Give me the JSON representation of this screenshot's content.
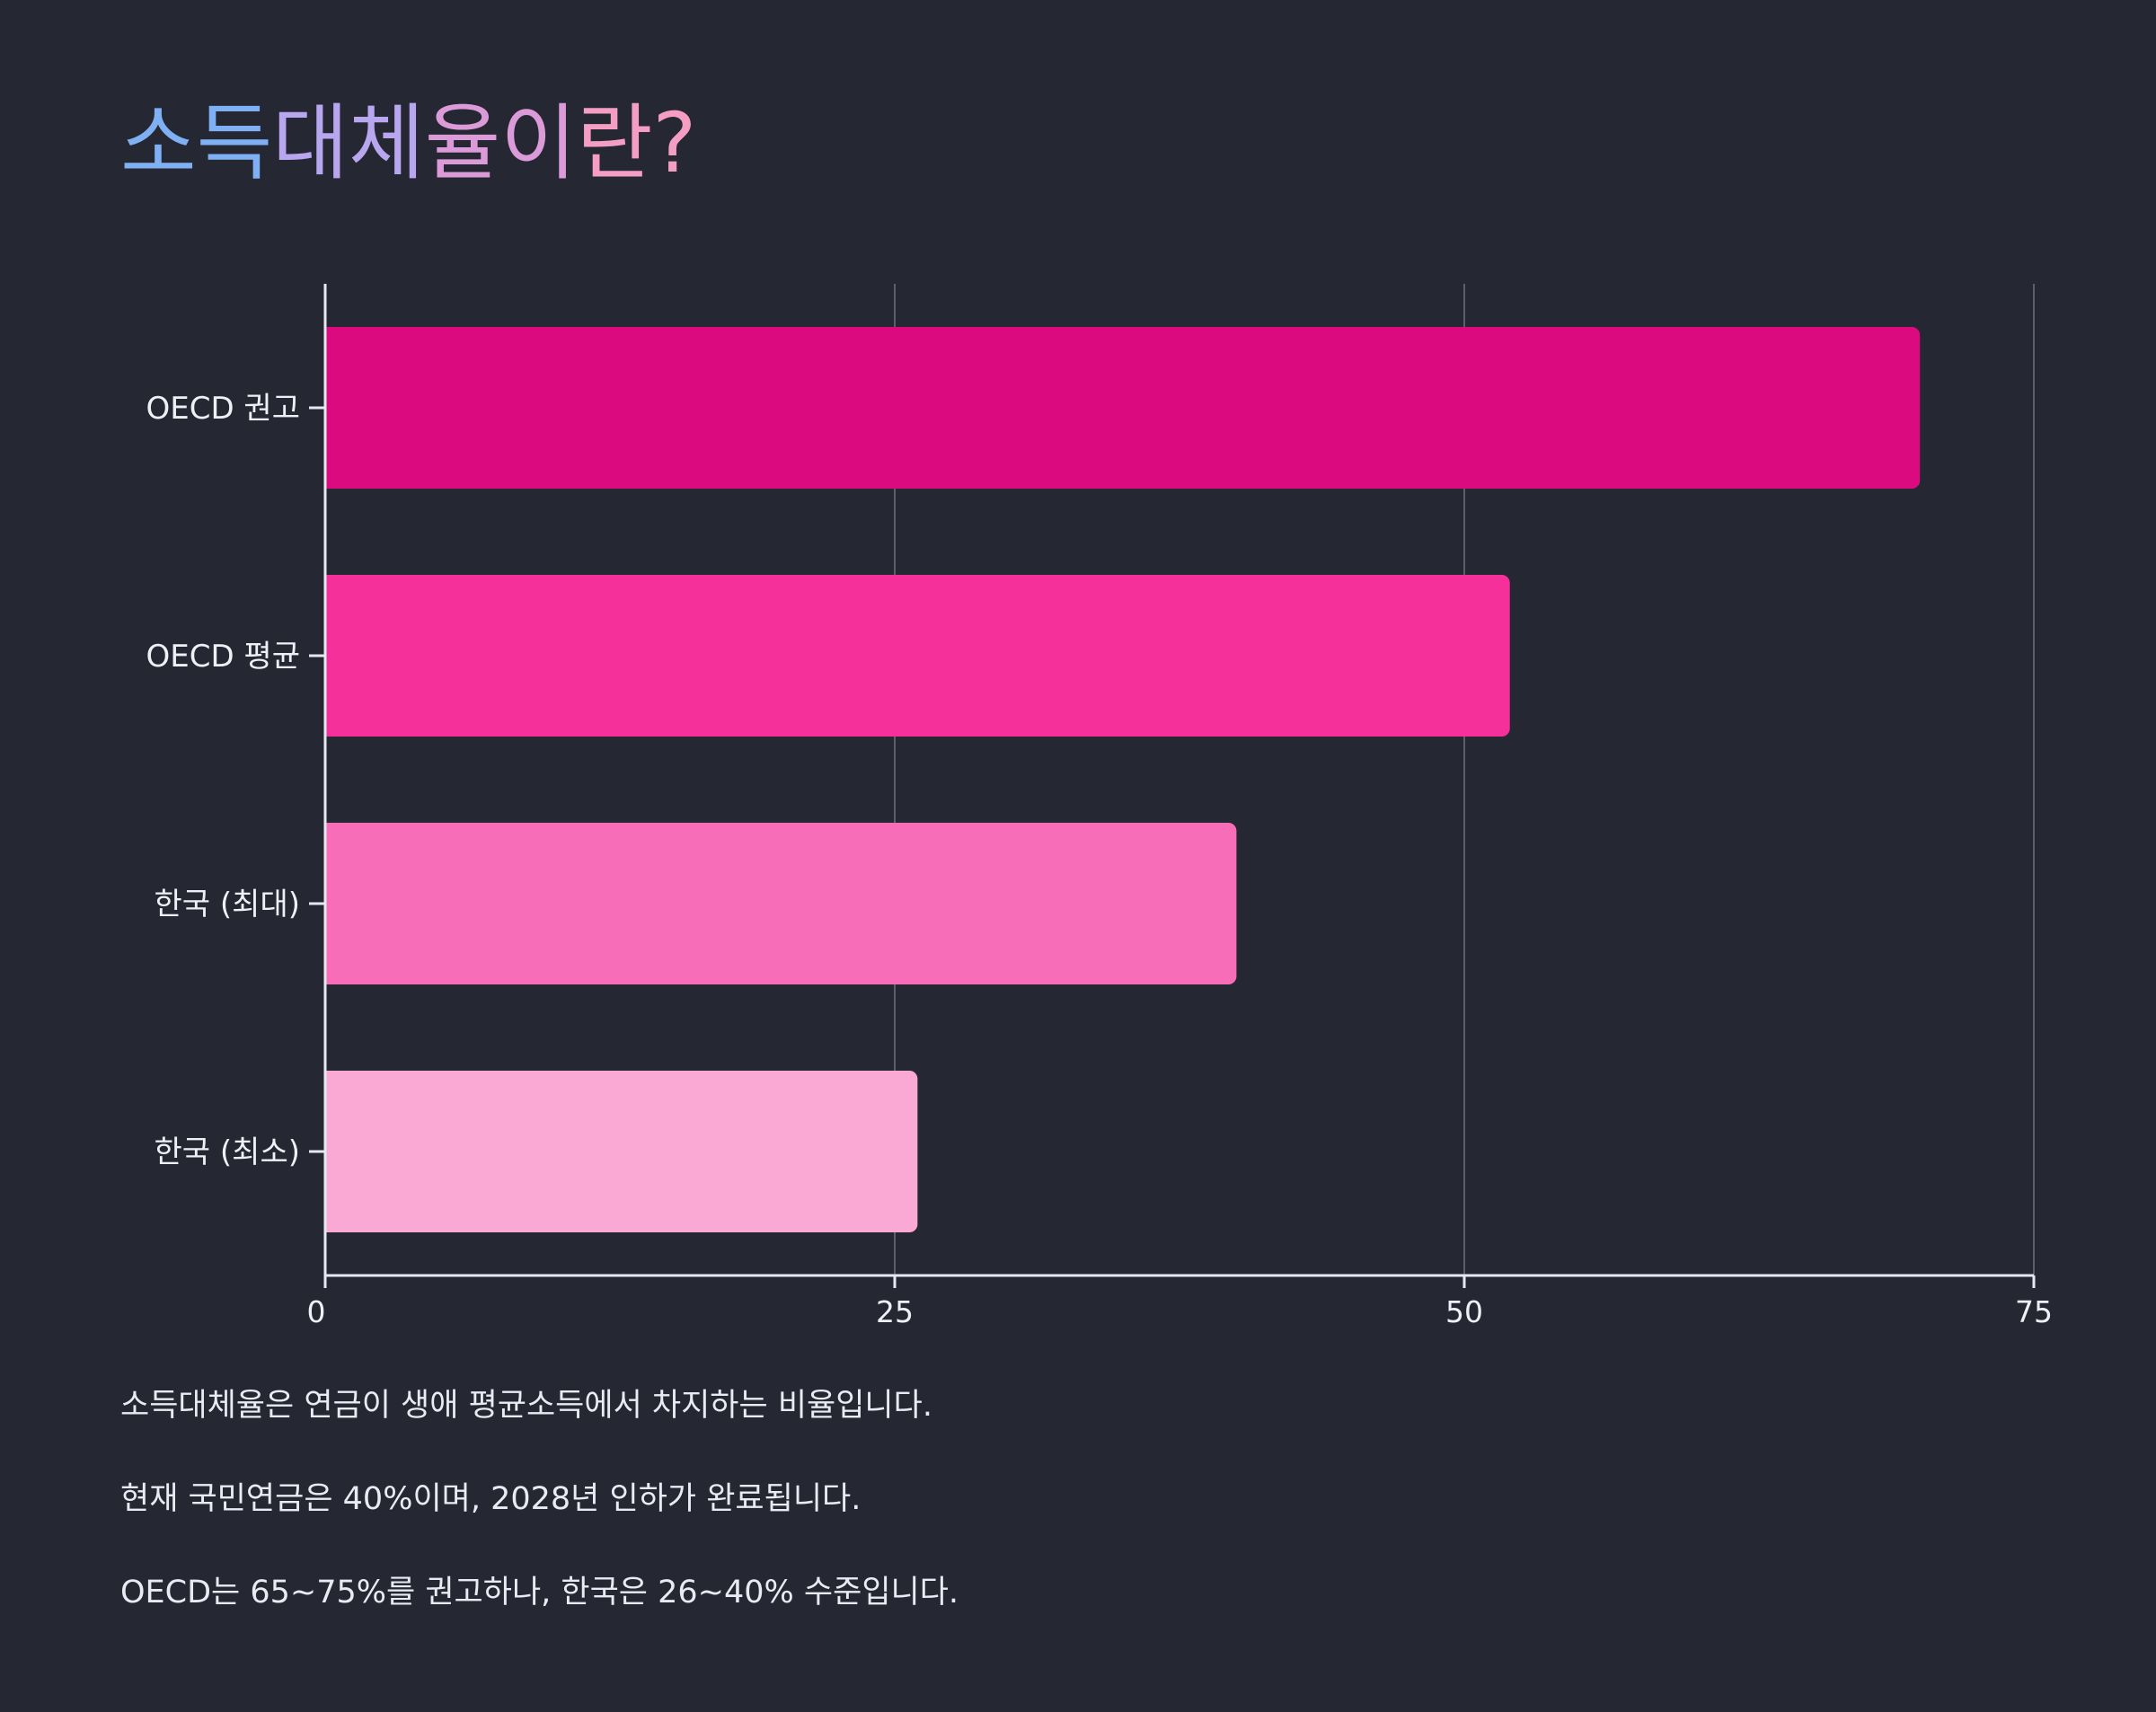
{
  "title": "소득대체율이란?",
  "chart_data": {
    "type": "bar",
    "orientation": "horizontal",
    "categories": [
      "OECD 권고",
      "OECD 평균",
      "한국 (최대)",
      "한국 (최소)"
    ],
    "values": [
      70,
      52,
      40,
      26
    ],
    "colors": [
      "#db0b7f",
      "#f5309b",
      "#f76db8",
      "#f9a9d3"
    ],
    "xlim": [
      0,
      75
    ],
    "xticks": [
      "0",
      "25",
      "50",
      "75"
    ],
    "grid": true
  },
  "description": [
    "소득대체율은 연금이 생애 평균소득에서 차지하는 비율입니다.",
    "현재 국민연금은 40%이며, 2028년 인하가 완료됩니다.",
    "OECD는 65~75%를 권고하나, 한국은 26~40% 수준입니다."
  ]
}
